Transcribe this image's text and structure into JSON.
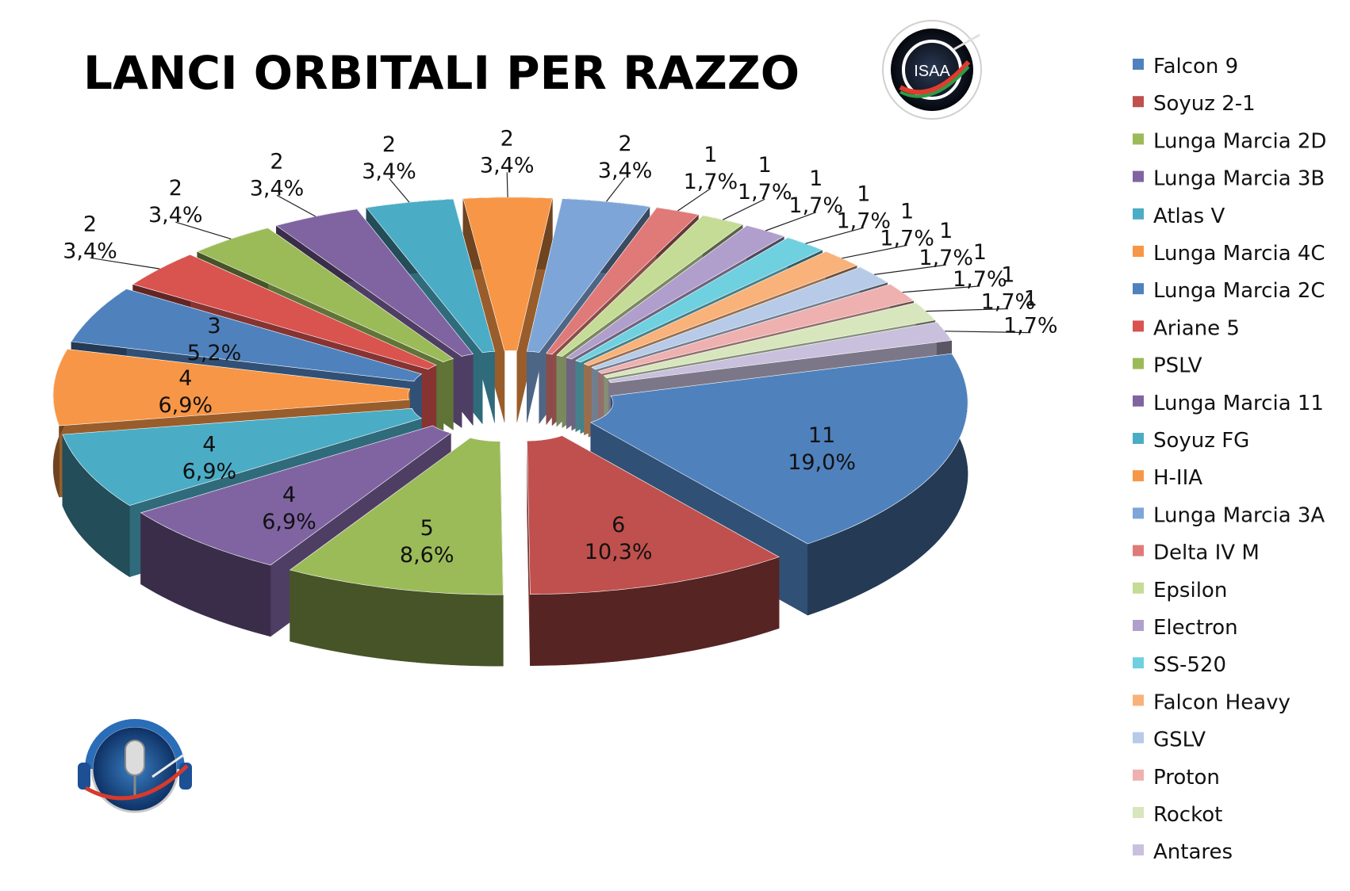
{
  "chart_data": {
    "type": "pie",
    "title": "LANCI ORBITALI PER RAZZO",
    "slices": [
      {
        "name": "Falcon 9",
        "value": 11,
        "percent": "19,0%",
        "color": "#4f81bd"
      },
      {
        "name": "Soyuz 2-1",
        "value": 6,
        "percent": "10,3%",
        "color": "#c0504d"
      },
      {
        "name": "Lunga Marcia 2D",
        "value": 5,
        "percent": "8,6%",
        "color": "#9bbb59"
      },
      {
        "name": "Lunga Marcia 3B",
        "value": 4,
        "percent": "6,9%",
        "color": "#8064a2"
      },
      {
        "name": "Atlas V",
        "value": 4,
        "percent": "6,9%",
        "color": "#4bacc6"
      },
      {
        "name": "Lunga Marcia 4C",
        "value": 4,
        "percent": "6,9%",
        "color": "#f79646"
      },
      {
        "name": "Lunga Marcia 2C",
        "value": 3,
        "percent": "5,2%",
        "color": "#4f81bd"
      },
      {
        "name": "Ariane 5",
        "value": 2,
        "percent": "3,4%",
        "color": "#d9534f"
      },
      {
        "name": "PSLV",
        "value": 2,
        "percent": "3,4%",
        "color": "#9bbb59"
      },
      {
        "name": "Lunga Marcia 11",
        "value": 2,
        "percent": "3,4%",
        "color": "#8064a2"
      },
      {
        "name": "Soyuz FG",
        "value": 2,
        "percent": "3,4%",
        "color": "#4bacc6"
      },
      {
        "name": "H-IIA",
        "value": 2,
        "percent": "3,4%",
        "color": "#f79646"
      },
      {
        "name": "Lunga Marcia 3A",
        "value": 2,
        "percent": "3,4%",
        "color": "#7ea5d8"
      },
      {
        "name": "Delta IV M",
        "value": 1,
        "percent": "1,7%",
        "color": "#e07a78"
      },
      {
        "name": "Epsilon",
        "value": 1,
        "percent": "1,7%",
        "color": "#c4dc96"
      },
      {
        "name": "Electron",
        "value": 1,
        "percent": "1,7%",
        "color": "#b09fcc"
      },
      {
        "name": "SS-520",
        "value": 1,
        "percent": "1,7%",
        "color": "#6fd0e0"
      },
      {
        "name": "Falcon Heavy",
        "value": 1,
        "percent": "1,7%",
        "color": "#f9b27a"
      },
      {
        "name": "GSLV",
        "value": 1,
        "percent": "1,7%",
        "color": "#b7cbe8"
      },
      {
        "name": "Proton",
        "value": 1,
        "percent": "1,7%",
        "color": "#eeb1b0"
      },
      {
        "name": "Rockot",
        "value": 1,
        "percent": "1,7%",
        "color": "#d7e6bd"
      },
      {
        "name": "Antares",
        "value": 1,
        "percent": "1,7%",
        "color": "#c8c0dc"
      }
    ],
    "legend_position": "right"
  },
  "logos": {
    "isaa_text": "ISAA"
  }
}
